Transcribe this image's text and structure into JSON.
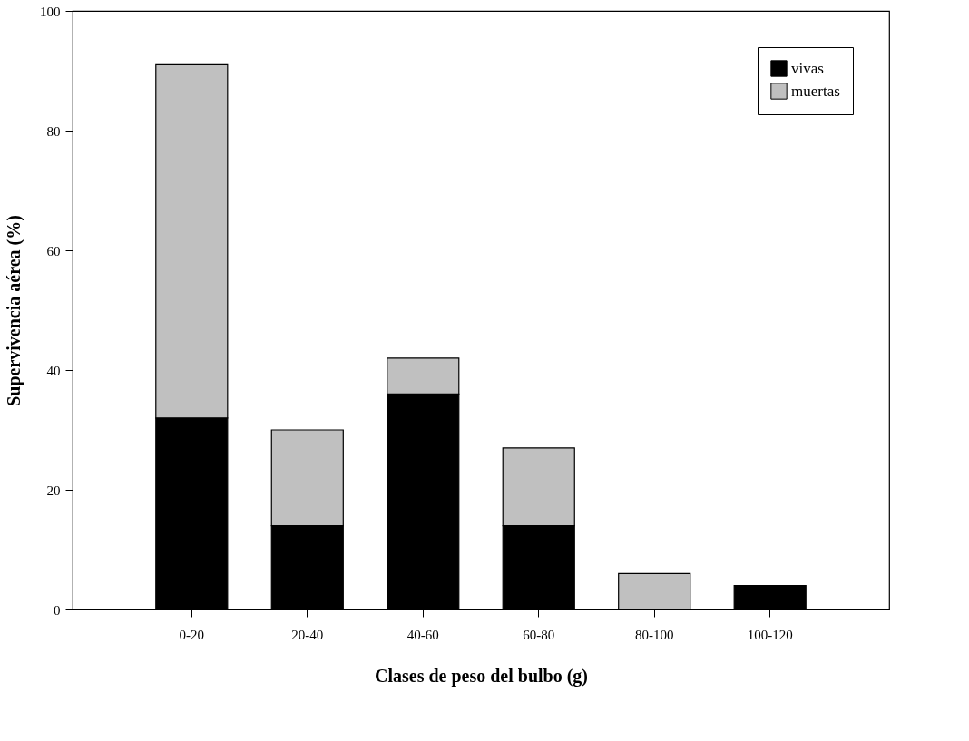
{
  "chart_data": {
    "type": "bar",
    "stacked": true,
    "xlabel": "Clases de peso del bulbo (g)",
    "ylabel": "Supervivencia aérea (%)",
    "categories": [
      "0-20",
      "20-40",
      "40-60",
      "60-80",
      "80-100",
      "100-120"
    ],
    "series": [
      {
        "name": "vivas",
        "color": "#000000",
        "values": [
          32,
          14,
          36,
          14,
          0,
          4
        ]
      },
      {
        "name": "muertas",
        "color": "#c0c0c0",
        "values": [
          59,
          16,
          6,
          13,
          6,
          0
        ]
      }
    ],
    "ylim": [
      0,
      100
    ],
    "yticks": [
      0,
      20,
      40,
      60,
      80,
      100
    ],
    "grid": false,
    "legend": "top right"
  }
}
